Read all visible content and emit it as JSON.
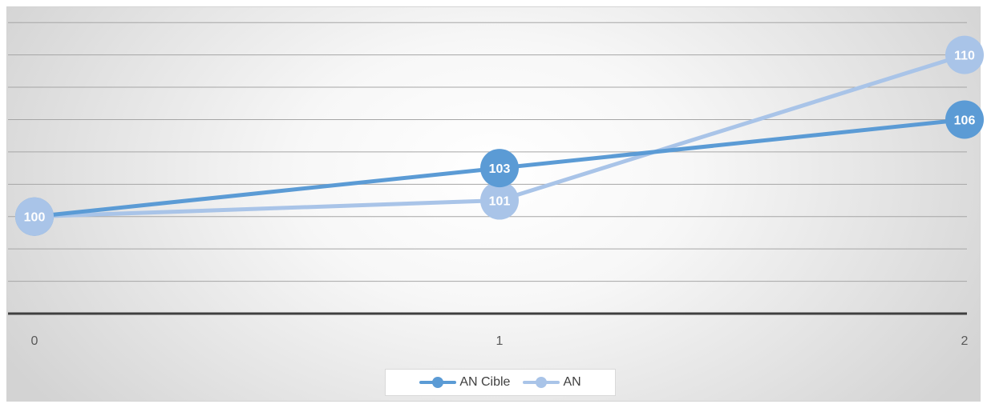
{
  "chart_data": {
    "type": "line",
    "x": [
      0,
      1,
      2
    ],
    "ylim": [
      94,
      113
    ],
    "grid": true,
    "legend_position": "bottom",
    "series": [
      {
        "name": "AN Cible",
        "values": [
          100,
          103,
          106
        ],
        "color": "#5b9bd5"
      },
      {
        "name": "AN",
        "values": [
          100,
          101,
          110
        ],
        "color": "#a9c4e8"
      }
    ]
  }
}
